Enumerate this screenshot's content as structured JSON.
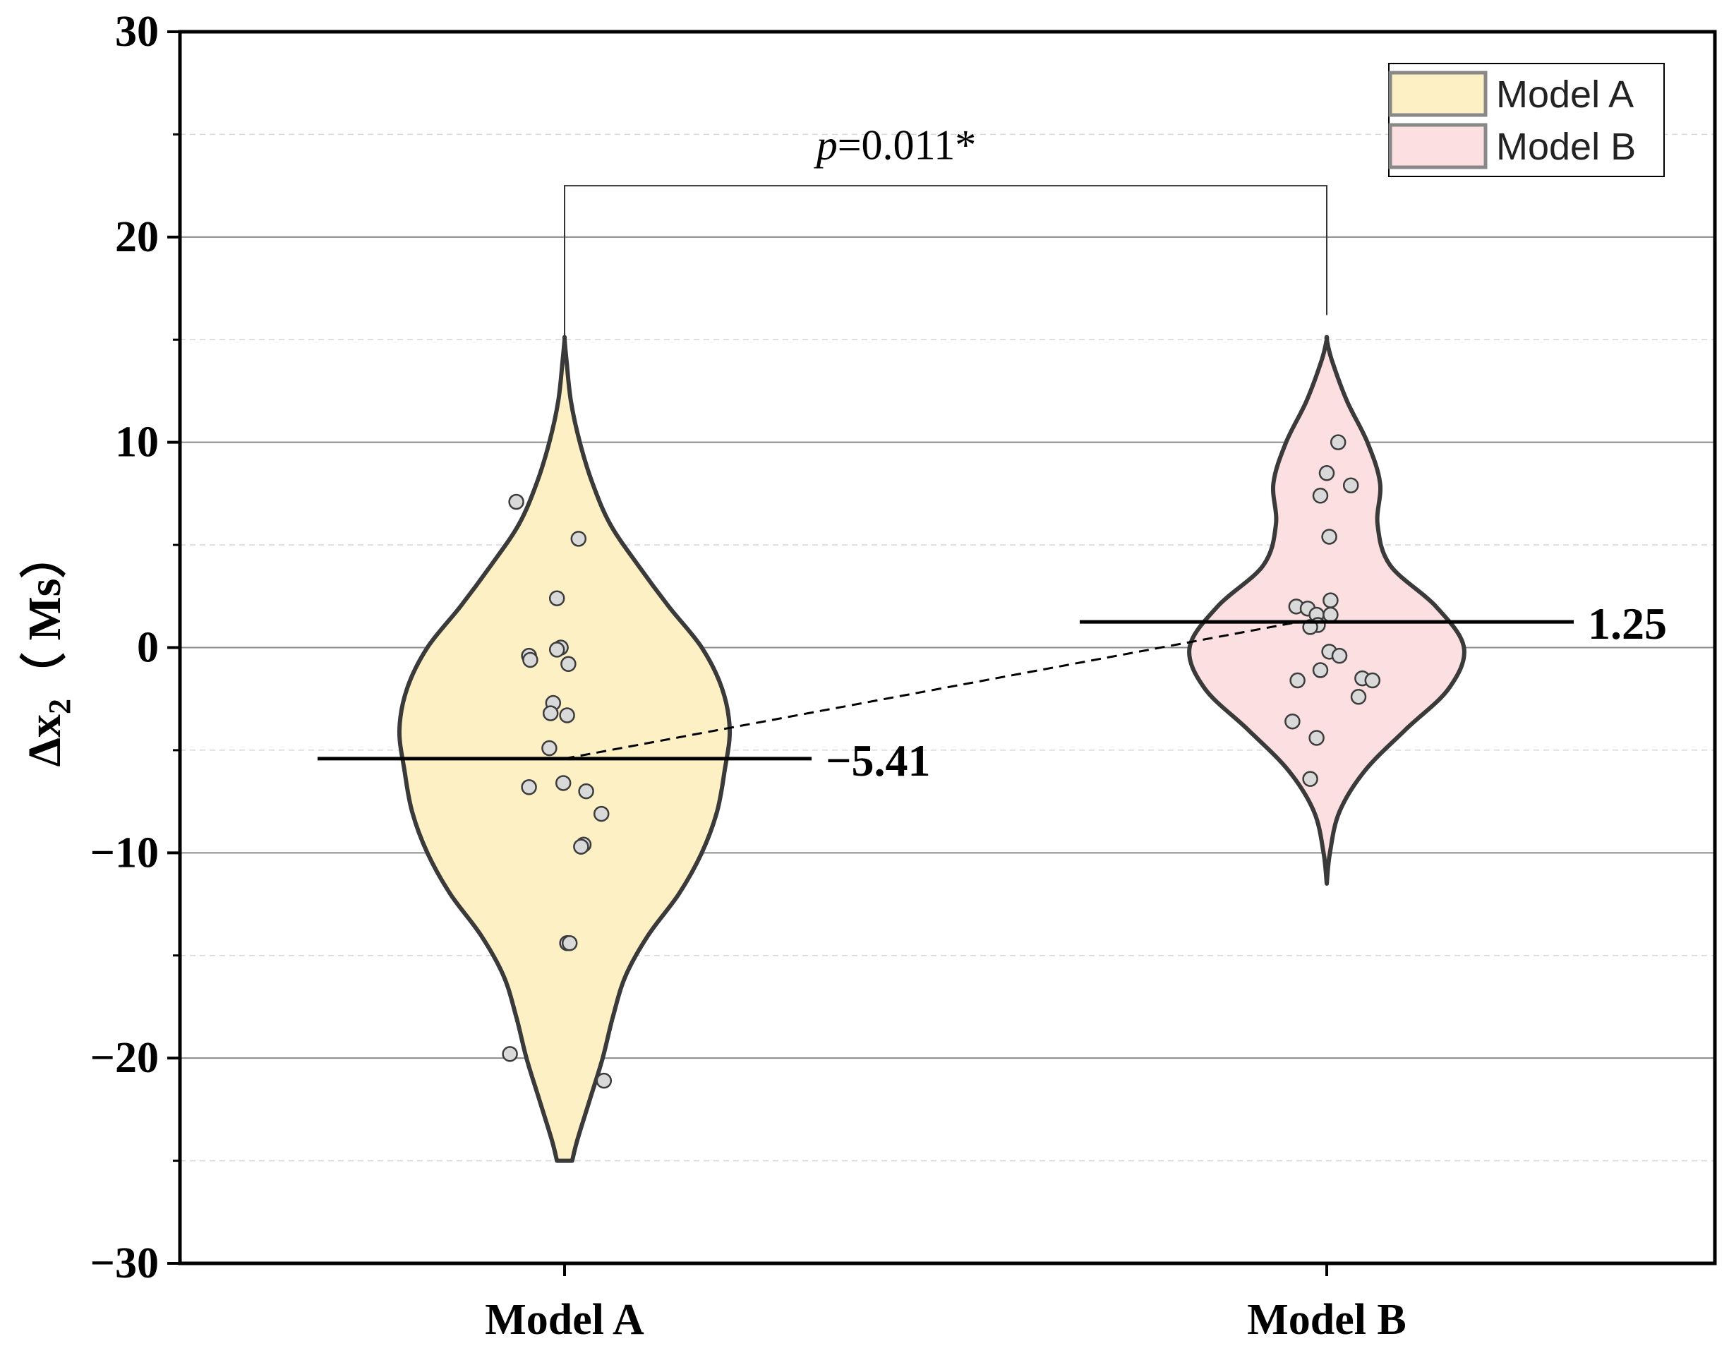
{
  "chart_data": {
    "type": "violin",
    "ylabel_base": "Δx",
    "ylabel_sub": "2",
    "ylabel_unit": "（ Ms）",
    "ylim": [
      -30,
      30
    ],
    "yticks": [
      30,
      20,
      10,
      0,
      -10,
      -20,
      -30
    ],
    "ytick_labels": [
      "30",
      "20",
      "10",
      "0",
      "−10",
      "−20",
      "−30"
    ],
    "grid": true,
    "categories": [
      "Model A",
      "Model B"
    ],
    "series": [
      {
        "name": "Model A",
        "color": "#fdf0c4",
        "mean": -5.41,
        "mean_label": "−5.41",
        "range": [
          -25,
          15
        ],
        "points": [
          [
            -0.38,
            7.1
          ],
          [
            0.11,
            5.3
          ],
          [
            -0.06,
            2.4
          ],
          [
            -0.03,
            0.0
          ],
          [
            -0.06,
            -0.1
          ],
          [
            -0.28,
            -0.4
          ],
          [
            -0.27,
            -0.6
          ],
          [
            0.03,
            -0.8
          ],
          [
            -0.09,
            -2.7
          ],
          [
            -0.11,
            -3.2
          ],
          [
            0.02,
            -3.3
          ],
          [
            -0.12,
            -4.9
          ],
          [
            -0.28,
            -6.8
          ],
          [
            -0.01,
            -6.6
          ],
          [
            0.17,
            -7.0
          ],
          [
            0.29,
            -8.1
          ],
          [
            0.15,
            -9.6
          ],
          [
            0.13,
            -9.7
          ],
          [
            0.02,
            -14.4
          ],
          [
            0.04,
            -14.4
          ],
          [
            -0.43,
            -19.8
          ],
          [
            0.31,
            -21.1
          ]
        ]
      },
      {
        "name": "Model B",
        "color": "#fcdfe1",
        "mean": 1.25,
        "mean_label": "1.25",
        "range": [
          -11.5,
          15
        ],
        "points": [
          [
            0.09,
            10.0
          ],
          [
            0.0,
            8.5
          ],
          [
            0.19,
            7.9
          ],
          [
            -0.05,
            7.4
          ],
          [
            0.02,
            5.4
          ],
          [
            0.03,
            2.3
          ],
          [
            -0.24,
            2.0
          ],
          [
            -0.15,
            1.9
          ],
          [
            -0.08,
            1.6
          ],
          [
            0.03,
            1.6
          ],
          [
            -0.07,
            1.1
          ],
          [
            -0.13,
            1.0
          ],
          [
            0.02,
            -0.2
          ],
          [
            0.1,
            -0.4
          ],
          [
            -0.05,
            -1.1
          ],
          [
            -0.23,
            -1.6
          ],
          [
            0.28,
            -1.5
          ],
          [
            0.36,
            -1.6
          ],
          [
            0.25,
            -2.4
          ],
          [
            -0.27,
            -3.6
          ],
          [
            -0.08,
            -4.4
          ],
          [
            -0.13,
            -6.4
          ]
        ]
      }
    ],
    "significance": {
      "p_italic": "p",
      "p_rest": "=0.011*"
    },
    "legend": {
      "position": "top-right",
      "entries": [
        "Model A",
        "Model B"
      ]
    }
  }
}
